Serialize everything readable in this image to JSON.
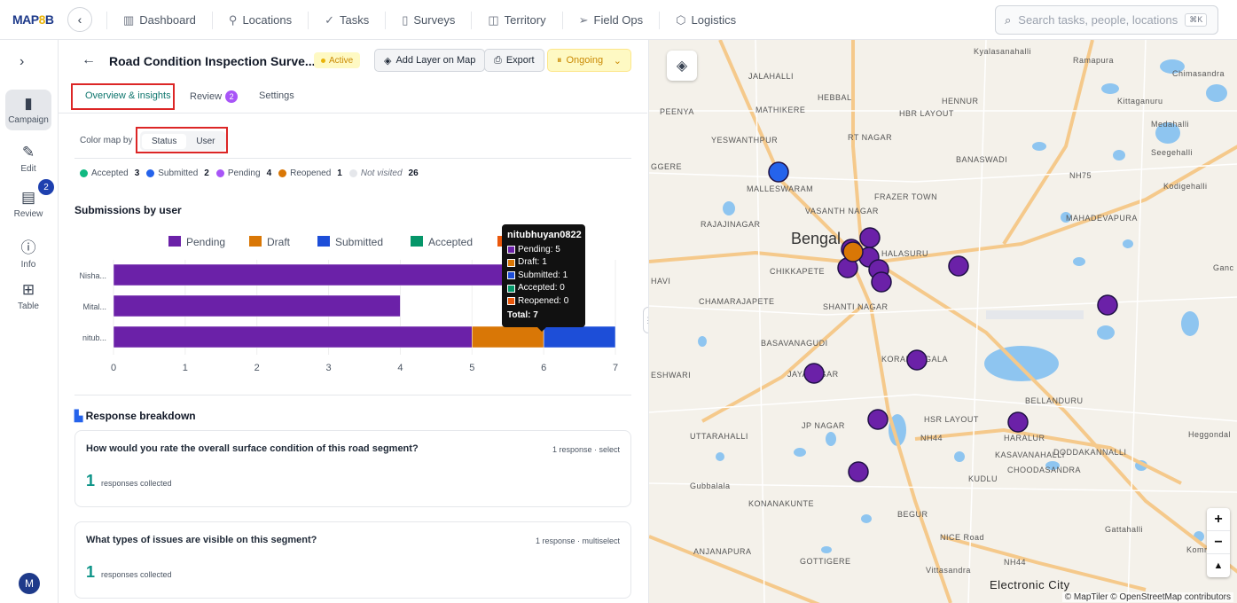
{
  "topbar": {
    "logo_a": "MAP",
    "logo_b": "8",
    "logo_c": "B",
    "nav": [
      {
        "label": "Dashboard",
        "icon": "bar-chart-icon"
      },
      {
        "label": "Locations",
        "icon": "pin-icon"
      },
      {
        "label": "Tasks",
        "icon": "check-icon"
      },
      {
        "label": "Surveys",
        "icon": "clipboard-icon"
      },
      {
        "label": "Territory",
        "icon": "map-icon"
      },
      {
        "label": "Field Ops",
        "icon": "send-icon"
      },
      {
        "label": "Logistics",
        "icon": "box-icon"
      }
    ],
    "search_placeholder": "Search tasks, people, locations...",
    "search_kbd": "⌘K"
  },
  "rail": {
    "items": [
      {
        "label": "Campaign",
        "icon": "clipboard-icon"
      },
      {
        "label": "Edit",
        "icon": "edit-icon"
      },
      {
        "label": "Review",
        "icon": "document-icon"
      },
      {
        "label": "Info",
        "icon": "info-icon"
      },
      {
        "label": "Table",
        "icon": "grid-icon"
      }
    ],
    "review_badge": "2",
    "avatar": "M"
  },
  "panel": {
    "title": "Road Condition Inspection Surve...",
    "status_badge": "Active",
    "btn_add_layer": "Add Layer on Map",
    "btn_export": "Export",
    "btn_ongoing": "Ongoing",
    "tabs": [
      {
        "label": "Overview & insights"
      },
      {
        "label": "Review",
        "badge": "2"
      },
      {
        "label": "Settings"
      }
    ],
    "color_map_by": "Color map by",
    "seg_status": "Status",
    "seg_user": "User",
    "status_legend": [
      {
        "label": "Accepted",
        "count": "3",
        "color": "#10b981"
      },
      {
        "label": "Submitted",
        "count": "2",
        "color": "#2563eb"
      },
      {
        "label": "Pending",
        "count": "4",
        "color": "#a855f7"
      },
      {
        "label": "Reopened",
        "count": "1",
        "color": "#d97706"
      },
      {
        "label": "Not visited",
        "count": "26",
        "color": "#e5e7eb"
      }
    ],
    "submissions_title": "Submissions by user",
    "breakdown_title": "Response breakdown",
    "questions": [
      {
        "q": "How would you rate the overall surface condition of this road segment?",
        "meta": "1 response · select",
        "count": "1",
        "collected": "responses collected"
      },
      {
        "q": "What types of issues are visible on this segment?",
        "meta": "1 response · multiselect",
        "count": "1",
        "collected": "responses collected"
      }
    ]
  },
  "chart_data": {
    "type": "bar",
    "orientation": "horizontal",
    "stacked": true,
    "categories": [
      "Nisha...",
      "Mital...",
      "nitub..."
    ],
    "series": [
      {
        "name": "Pending",
        "color": "#6b21a8",
        "values": [
          6,
          4,
          5
        ]
      },
      {
        "name": "Draft",
        "color": "#d97706",
        "values": [
          0,
          0,
          1
        ]
      },
      {
        "name": "Submitted",
        "color": "#1d4ed8",
        "values": [
          0,
          0,
          1
        ]
      },
      {
        "name": "Accepted",
        "color": "#059669",
        "values": [
          0,
          0,
          0
        ]
      },
      {
        "name": "Reopened",
        "color": "#ea580c",
        "values": [
          0,
          0,
          0
        ]
      }
    ],
    "xlim": [
      0,
      7
    ],
    "xticks": [
      "0",
      "1",
      "2",
      "3",
      "4",
      "5",
      "6",
      "7"
    ],
    "legend": "top"
  },
  "tooltip": {
    "title": "nitubhuyan0822",
    "rows": [
      {
        "text": "Pending: 5",
        "color": "#6b21a8"
      },
      {
        "text": "Draft: 1",
        "color": "#d97706"
      },
      {
        "text": "Submitted: 1",
        "color": "#1d4ed8"
      },
      {
        "text": "Accepted: 0",
        "color": "#059669"
      },
      {
        "text": "Reopened: 0",
        "color": "#ea580c"
      }
    ],
    "total": "Total: 7"
  },
  "map": {
    "city": "Bengal",
    "labels": [
      "Kyalasanahalli",
      "Ramapura",
      "Chimasandra",
      "JALAHALLI",
      "HEBBAL",
      "HENNUR",
      "Kittaganuru",
      "PEENYA",
      "MATHIKERE",
      "HBR LAYOUT",
      "Medahalli",
      "YESWANTHPUR",
      "RT NAGAR",
      "Seegehalli",
      "GGERE",
      "MALLESWARAM",
      "BANASWADI",
      "NH75",
      "Kodigehalli",
      "FRAZER TOWN",
      "VASANTH NAGAR",
      "MAHADEVAPURA",
      "RAJAJINAGAR",
      "HALASURU",
      "HAVI",
      "CHIKKAPETE",
      "Ganc",
      "CHAMARAJAPETE",
      "SHANTI NAGAR",
      "BASAVANAGUDI",
      "KORAMANGALA",
      "BELLANDURU",
      "ESHWARI",
      "JAYANAGAR",
      "HSR LAYOUT",
      "JP NAGAR",
      "NH44",
      "HARALUR",
      "Heggondal",
      "UTTARAHALLI",
      "DODDAKANNALLI",
      "KASAVANAHALLI",
      "CHOODASANDRA",
      "Gubbalala",
      "KUDLU",
      "KONANAKUNTE",
      "BEGUR",
      "Gattahalli",
      "ANJANAPURA",
      "NICE Road",
      "Komma",
      "GOTTIGERE",
      "Vittasandra",
      "NH44",
      "Electronic City"
    ],
    "attribution": "© MapTiler © OpenStreetMap contributors",
    "zoom_in": "+",
    "zoom_out": "−",
    "compass": "▲"
  }
}
